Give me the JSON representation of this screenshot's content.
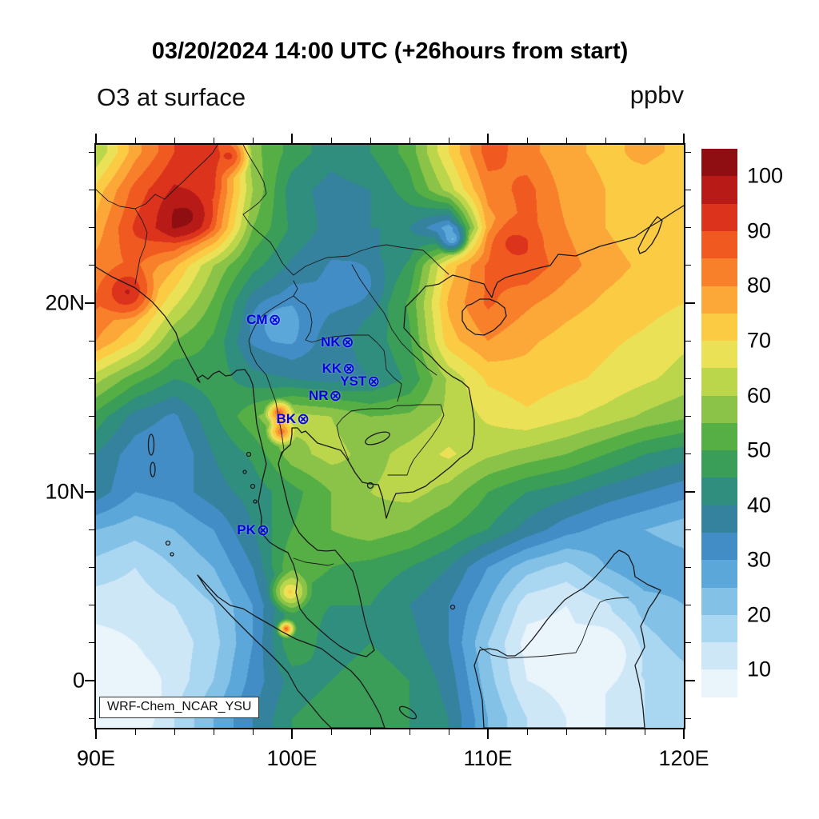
{
  "title": "03/20/2024 14:00 UTC (+26hours from start)",
  "variable_label": "O3 at surface",
  "units_label": "ppbv",
  "model_label": "WRF-Chem_NCAR_YSU",
  "chart_data": {
    "type": "heatmap",
    "title": "03/20/2024 14:00 UTC (+26hours from start)",
    "variable": "O3 at surface",
    "units": "ppbv",
    "model": "WRF-Chem_NCAR_YSU",
    "projection": "cylindrical lat-lon",
    "lon_range": [
      90,
      120
    ],
    "lat_range": [
      -2.5,
      28.4
    ],
    "x_ticks": [
      {
        "lon": 90,
        "label": "90E"
      },
      {
        "lon": 100,
        "label": "100E"
      },
      {
        "lon": 110,
        "label": "110E"
      },
      {
        "lon": 120,
        "label": "120E"
      }
    ],
    "y_ticks": [
      {
        "lat": 20,
        "label": "20N"
      },
      {
        "lat": 10,
        "label": "10N"
      },
      {
        "lat": 0,
        "label": "0"
      }
    ],
    "minor_tick_step_deg": 2,
    "levels": {
      "min": 0,
      "max": 105,
      "step": 5,
      "colors": [
        "#FFFFFF",
        "#E9F4FB",
        "#CDE7F7",
        "#A9D6F0",
        "#83C1E6",
        "#5CA7D9",
        "#428DC6",
        "#35829E",
        "#2F8E7E",
        "#3A9D58",
        "#55AF45",
        "#8AC348",
        "#BCD64C",
        "#EBE156",
        "#FBCB44",
        "#FCA838",
        "#F8802B",
        "#F05A21",
        "#DB331C",
        "#B81B17",
        "#8E0E12"
      ]
    },
    "colorbar_labels": [
      10,
      20,
      30,
      40,
      50,
      60,
      70,
      80,
      90,
      100
    ],
    "stations": [
      {
        "label": "CM",
        "lon": 99.0,
        "lat": 19.1
      },
      {
        "label": "NK",
        "lon": 102.72,
        "lat": 17.95
      },
      {
        "label": "KK",
        "lon": 102.78,
        "lat": 16.55
      },
      {
        "label": "YST",
        "lon": 104.05,
        "lat": 15.85
      },
      {
        "label": "NR",
        "lon": 102.1,
        "lat": 15.1
      },
      {
        "label": "BK",
        "lon": 100.45,
        "lat": 13.85
      },
      {
        "label": "PK",
        "lon": 98.4,
        "lat": 7.95
      }
    ],
    "grid": {
      "lons": [
        90,
        92,
        94,
        96,
        98,
        100,
        102,
        104,
        106,
        108,
        110,
        112,
        114,
        116,
        118,
        120
      ],
      "lats": [
        28,
        26,
        24,
        22,
        20,
        18,
        16,
        14,
        12,
        10,
        8,
        6,
        4,
        2,
        0,
        -2
      ],
      "values": [
        [
          60,
          78,
          90,
          93,
          57,
          48,
          42,
          45,
          52,
          70,
          88,
          82,
          76,
          74,
          76,
          74
        ],
        [
          72,
          87,
          96,
          91,
          60,
          42,
          38,
          40,
          48,
          62,
          82,
          87,
          78,
          75,
          73,
          71
        ],
        [
          77,
          91,
          99,
          86,
          55,
          44,
          38,
          40,
          40,
          28,
          77,
          87,
          80,
          75,
          72,
          70
        ],
        [
          82,
          86,
          76,
          60,
          47,
          39,
          35,
          38,
          46,
          72,
          86,
          89,
          82,
          77,
          74,
          72
        ],
        [
          86,
          81,
          66,
          54,
          37,
          31,
          34,
          40,
          51,
          76,
          86,
          81,
          77,
          74,
          72,
          70
        ],
        [
          80,
          70,
          55,
          49,
          34,
          30,
          38,
          42,
          49,
          73,
          80,
          76,
          73,
          71,
          69,
          66
        ],
        [
          62,
          52,
          45,
          48,
          42,
          40,
          38,
          40,
          46,
          61,
          71,
          73,
          71,
          69,
          66,
          63
        ],
        [
          48,
          38,
          34,
          44,
          54,
          62,
          60,
          55,
          56,
          61,
          66,
          69,
          66,
          63,
          59,
          56
        ],
        [
          40,
          32,
          30,
          40,
          46,
          58,
          62,
          58,
          62,
          66,
          61,
          58,
          55,
          50,
          45,
          42
        ],
        [
          38,
          30,
          32,
          38,
          42,
          48,
          55,
          60,
          62,
          58,
          50,
          45,
          42,
          38,
          35,
          32
        ],
        [
          25,
          22,
          25,
          30,
          40,
          50,
          55,
          58,
          55,
          50,
          45,
          38,
          32,
          28,
          25,
          22
        ],
        [
          18,
          15,
          20,
          25,
          35,
          55,
          50,
          48,
          45,
          40,
          30,
          22,
          18,
          25,
          30,
          28
        ],
        [
          12,
          12,
          15,
          20,
          30,
          48,
          45,
          45,
          40,
          35,
          25,
          12,
          10,
          14,
          22,
          25
        ],
        [
          8,
          10,
          12,
          18,
          30,
          50,
          42,
          45,
          42,
          35,
          20,
          8,
          8,
          12,
          18,
          22
        ],
        [
          6,
          8,
          12,
          20,
          32,
          42,
          45,
          48,
          45,
          38,
          22,
          10,
          8,
          10,
          15,
          18
        ],
        [
          6,
          8,
          15,
          25,
          35,
          45,
          48,
          50,
          45,
          40,
          25,
          15,
          10,
          10,
          15,
          15
        ]
      ]
    },
    "spots": [
      {
        "lon": 94.6,
        "lat": 24.6,
        "r": 1.6,
        "v": 102
      },
      {
        "lon": 91.6,
        "lat": 20.6,
        "r": 1.6,
        "v": 96
      },
      {
        "lon": 96.8,
        "lat": 27.8,
        "r": 1.2,
        "v": 92
      },
      {
        "lon": 99.3,
        "lat": 18.9,
        "r": 1.6,
        "v": 27
      },
      {
        "lon": 103.2,
        "lat": 21.0,
        "r": 2.0,
        "v": 32
      },
      {
        "lon": 108.2,
        "lat": 23.4,
        "r": 0.9,
        "v": 24
      },
      {
        "lon": 111.3,
        "lat": 23.2,
        "r": 1.6,
        "v": 92
      },
      {
        "lon": 99.35,
        "lat": 14.2,
        "r": 0.8,
        "v": 88
      },
      {
        "lon": 99.45,
        "lat": 13.2,
        "r": 0.8,
        "v": 86
      },
      {
        "lon": 99.9,
        "lat": 4.7,
        "r": 1.2,
        "v": 72
      },
      {
        "lon": 99.7,
        "lat": 2.75,
        "r": 0.55,
        "v": 88
      },
      {
        "lon": 116.0,
        "lat": 1.5,
        "r": 2.2,
        "v": 6
      },
      {
        "lon": 91.5,
        "lat": -1.0,
        "r": 2.5,
        "v": 6
      }
    ]
  }
}
